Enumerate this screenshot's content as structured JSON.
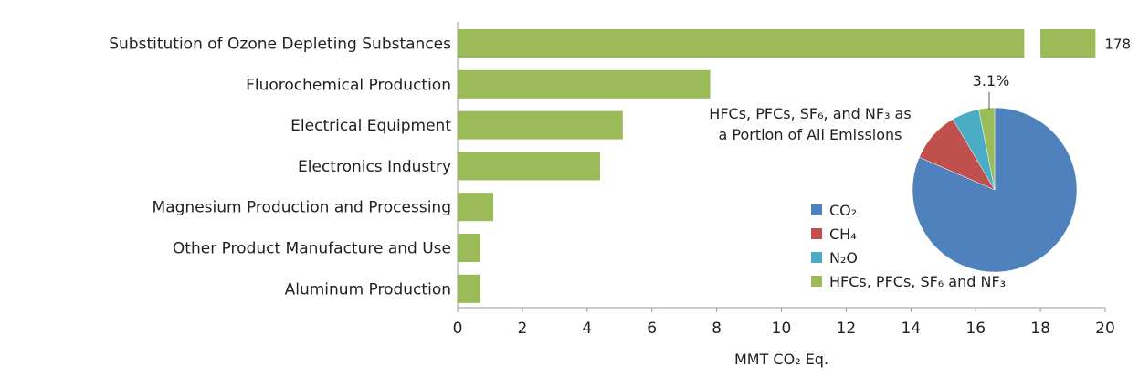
{
  "chart_data": [
    {
      "type": "bar",
      "orientation": "horizontal",
      "categories": [
        "Substitution of Ozone Depleting Substances",
        "Fluorochemical Production",
        "Electrical Equipment",
        "Electronics Industry",
        "Magnesium Production and Processing",
        "Other Product Manufacture and Use",
        "Aluminum Production"
      ],
      "values": [
        178,
        7.8,
        5.1,
        4.4,
        1.1,
        0.7,
        0.7
      ],
      "value_labels": [
        "178",
        "",
        "",
        "",
        "",
        "",
        ""
      ],
      "axis_break": {
        "from": 17.5,
        "to": 18.0
      },
      "xlabel": "MMT CO₂ Eq.",
      "xlim": [
        0,
        20
      ],
      "xticks": [
        "0",
        "2",
        "4",
        "6",
        "8",
        "10",
        "12",
        "14",
        "16",
        "18",
        "20"
      ],
      "color": "#9bbb59",
      "grid": false
    },
    {
      "type": "pie",
      "title_lines": [
        "HFCs, PFCs, SF₆, and NF₃ as",
        "a Portion of All Emissions"
      ],
      "slices": [
        {
          "label": "CO₂",
          "value": 81.5,
          "color": "#4f81bd"
        },
        {
          "label": "CH₄",
          "value": 10.0,
          "color": "#c0504d"
        },
        {
          "label": "N₂O",
          "value": 5.4,
          "color": "#4bacc6"
        },
        {
          "label": "HFCs, PFCs, SF₆ and NF₃",
          "value": 3.1,
          "color": "#9bbb59"
        }
      ],
      "annotation": "3.1%",
      "legend_placement": "left-of-pie"
    }
  ]
}
